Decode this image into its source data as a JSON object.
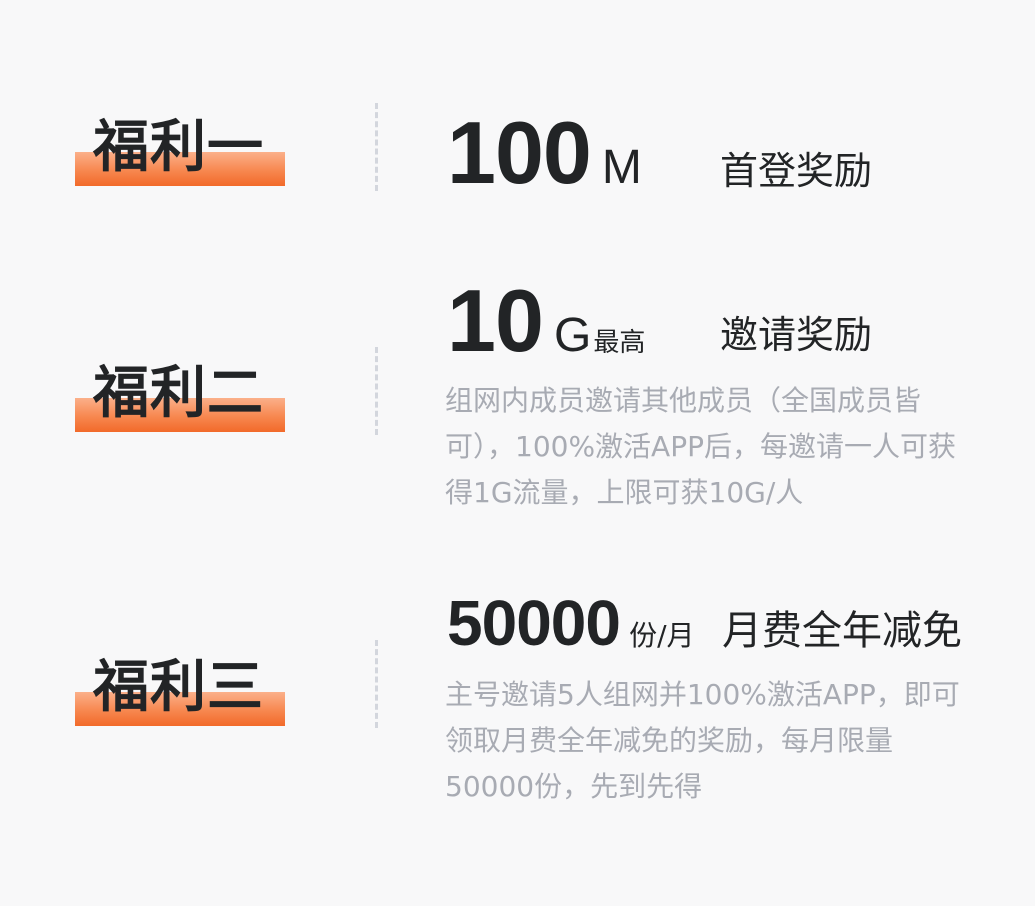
{
  "benefits": [
    {
      "tag": "福利一",
      "amount": "100",
      "unit": "M",
      "qualifier": "",
      "reward": "首登奖励",
      "description": ""
    },
    {
      "tag": "福利二",
      "amount": "10",
      "unit": "G",
      "qualifier": "最高",
      "reward": "邀请奖励",
      "description": "组网内成员邀请其他成员（全国成员皆可），100%激活APP后，每邀请一人可获得1G流量，上限可获10G/人"
    },
    {
      "tag": "福利三",
      "amount": "50000",
      "unit": "份/月",
      "qualifier": "",
      "reward": "月费全年减免",
      "description": "主号邀请5人组网并100%激活APP，即可领取月费全年减免的奖励，每月限量50000份，先到先得"
    }
  ],
  "colors": {
    "background": "#f8f8f9",
    "text": "#222426",
    "muted": "#a8abb3",
    "accent": "#f26a2a",
    "divider": "#d3d6dd"
  }
}
